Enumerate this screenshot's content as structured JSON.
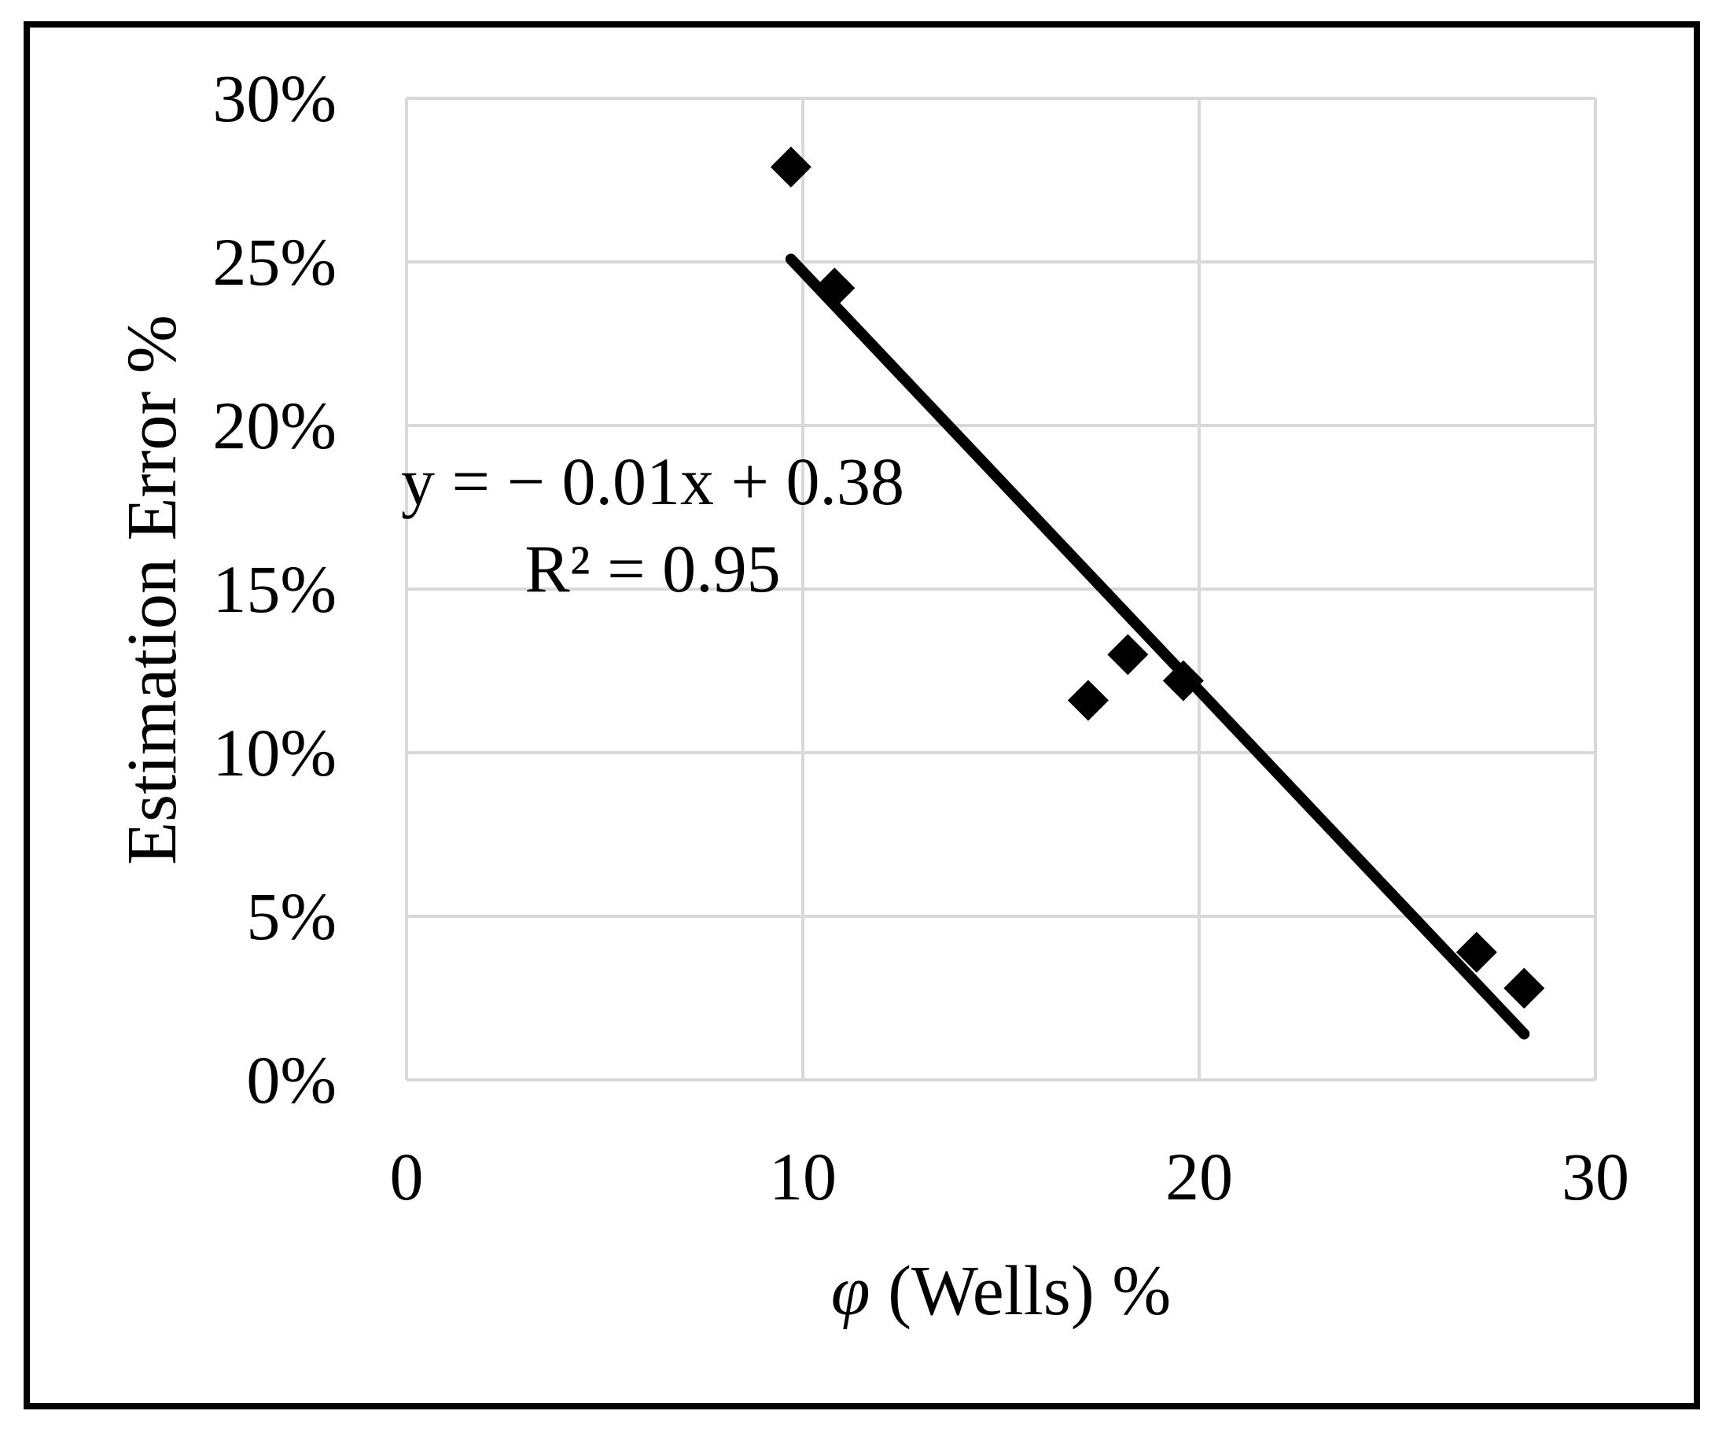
{
  "chart_data": {
    "type": "scatter",
    "title": "",
    "xlabel": "φ (Wells) %",
    "xlabel_parts": {
      "symbol": "φ",
      "rest": "(Wells) %"
    },
    "ylabel": "Estimation Error %",
    "xlim": [
      0,
      30
    ],
    "ylim_percent": [
      0,
      30
    ],
    "grid": true,
    "x_tick_values": [
      0,
      10,
      20,
      30
    ],
    "x_ticks": [
      "0",
      "10",
      "20",
      "30"
    ],
    "y_tick_values": [
      0,
      5,
      10,
      15,
      20,
      25,
      30
    ],
    "y_ticks": [
      "0%",
      "5%",
      "10%",
      "15%",
      "20%",
      "25%",
      "30%"
    ],
    "points": [
      {
        "x": 9.7,
        "y_percent": 27.9
      },
      {
        "x": 10.8,
        "y_percent": 24.2
      },
      {
        "x": 17.2,
        "y_percent": 11.6
      },
      {
        "x": 18.2,
        "y_percent": 13.0
      },
      {
        "x": 19.6,
        "y_percent": 12.2
      },
      {
        "x": 27.0,
        "y_percent": 3.9
      },
      {
        "x": 28.2,
        "y_percent": 2.8
      }
    ],
    "trendline": {
      "x_start": 9.7,
      "x_end": 28.2,
      "slope": -0.0128,
      "intercept": 0.375,
      "equation_label": "y = − 0.01x + 0.38",
      "r2_label": "R² = 0.95"
    },
    "marker": {
      "shape": "diamond",
      "size": 52,
      "color": "#000000"
    },
    "colors": {
      "background": "#ffffff",
      "frame_border": "#000000",
      "gridline": "#d9d9d9",
      "trendline": "#000000",
      "text": "#000000"
    },
    "legend": {
      "visible": false
    }
  }
}
